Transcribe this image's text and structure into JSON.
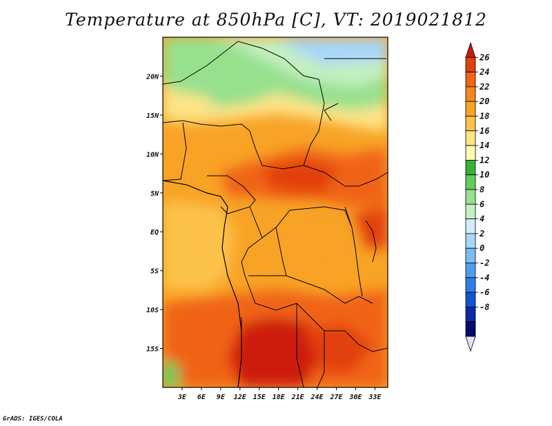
{
  "title": "Temperature at 850hPa [C], VT: 2019021812",
  "footer": "GrADS: IGES/COLA",
  "map": {
    "lon_range": [
      0,
      35
    ],
    "lat_range": [
      -20,
      25
    ],
    "lon_ticks": [
      "3E",
      "6E",
      "9E",
      "12E",
      "15E",
      "18E",
      "21E",
      "24E",
      "27E",
      "30E",
      "33E"
    ],
    "lat_ticks": [
      "20N",
      "15N",
      "10N",
      "5N",
      "EQ",
      "5S",
      "10S",
      "15S"
    ]
  },
  "colorbar": {
    "labels": [
      "26",
      "24",
      "22",
      "20",
      "18",
      "16",
      "14",
      "12",
      "10",
      "8",
      "6",
      "4",
      "2",
      "0",
      "-2",
      "-4",
      "-6",
      "-8"
    ],
    "colors": [
      "#e8e0f4",
      "#0a0a6e",
      "#0c2aa8",
      "#1454d2",
      "#2c7ee6",
      "#4f9eec",
      "#7bbcf3",
      "#a8d6f8",
      "#d2ecfa",
      "#c4f0c0",
      "#96e08e",
      "#62cc5e",
      "#34b432",
      "#fafab4",
      "#fde487",
      "#fcc24a",
      "#f8a326",
      "#f5861c",
      "#f06414",
      "#e2400e",
      "#cd1a0a"
    ]
  }
}
